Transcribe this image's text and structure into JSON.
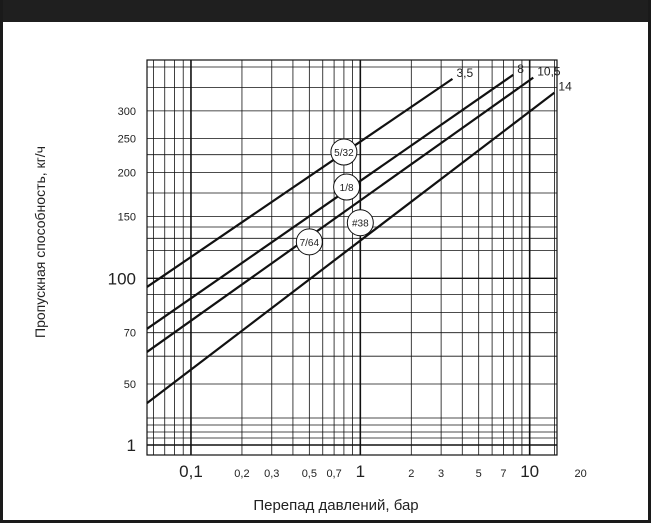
{
  "chart_data": {
    "type": "line",
    "xlabel": "Перепад давлений, бар",
    "ylabel": "Пропускная способность, кг/ч",
    "x_scale": "log",
    "y_scale": "log",
    "grid": true,
    "x_tick_labels": [
      {
        "value": 0.1,
        "label": "0,1",
        "major": true
      },
      {
        "value": 0.2,
        "label": "0,2",
        "major": false
      },
      {
        "value": 0.3,
        "label": "0,3",
        "major": false
      },
      {
        "value": 0.5,
        "label": "0,5",
        "major": false
      },
      {
        "value": 0.7,
        "label": "0,7",
        "major": false
      },
      {
        "value": 1,
        "label": "1",
        "major": true
      },
      {
        "value": 2,
        "label": "2",
        "major": false
      },
      {
        "value": 3,
        "label": "3",
        "major": false
      },
      {
        "value": 5,
        "label": "5",
        "major": false
      },
      {
        "value": 7,
        "label": "7",
        "major": false
      },
      {
        "value": 10,
        "label": "10",
        "major": true
      },
      {
        "value": 20,
        "label": "20",
        "major": false
      }
    ],
    "y_tick_labels": [
      {
        "value": 300,
        "label": "300",
        "major": false
      },
      {
        "value": 250,
        "label": "250",
        "major": false
      },
      {
        "value": 200,
        "label": "200",
        "major": false
      },
      {
        "value": 150,
        "label": "150",
        "major": false
      },
      {
        "value": 100,
        "label": "100",
        "major": true
      },
      {
        "value": 70,
        "label": "70",
        "major": false
      },
      {
        "value": 50,
        "label": "50",
        "major": false
      },
      {
        "value": 1,
        "label": "1",
        "major": true
      }
    ],
    "series": [
      {
        "name": "7/64",
        "end_label": "3,5",
        "x": [
          0.055,
          3.5
        ],
        "y": [
          94.5,
          370
        ]
      },
      {
        "name": "5/32",
        "end_label": "8",
        "x": [
          0.055,
          8
        ],
        "y": [
          71.8,
          380
        ]
      },
      {
        "name": "1/8",
        "end_label": "10,5",
        "x": [
          0.055,
          10.5
        ],
        "y": [
          61.7,
          373
        ]
      },
      {
        "name": "#38",
        "end_label": "14",
        "x": [
          0.055,
          14
        ],
        "y": [
          44.1,
          338
        ]
      }
    ],
    "series_labels": [
      {
        "text": "5/32",
        "x": 0.8,
        "y": 229
      },
      {
        "text": "1/8",
        "x": 0.83,
        "y": 182
      },
      {
        "text": "#38",
        "x": 1.0,
        "y": 144
      },
      {
        "text": "7/64",
        "x": 0.5,
        "y": 127
      }
    ]
  }
}
